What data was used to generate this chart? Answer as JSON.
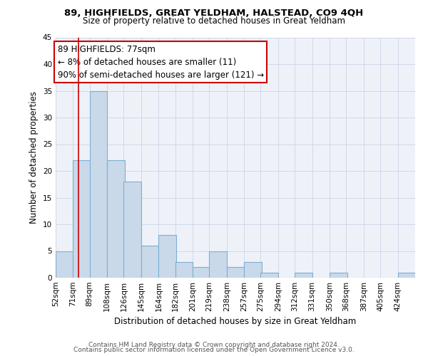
{
  "title": "89, HIGHFIELDS, GREAT YELDHAM, HALSTEAD, CO9 4QH",
  "subtitle": "Size of property relative to detached houses in Great Yeldham",
  "xlabel": "Distribution of detached houses by size in Great Yeldham",
  "ylabel": "Number of detached properties",
  "bin_labels": [
    "52sqm",
    "71sqm",
    "89sqm",
    "108sqm",
    "126sqm",
    "145sqm",
    "164sqm",
    "182sqm",
    "201sqm",
    "219sqm",
    "238sqm",
    "257sqm",
    "275sqm",
    "294sqm",
    "312sqm",
    "331sqm",
    "350sqm",
    "368sqm",
    "387sqm",
    "405sqm",
    "424sqm"
  ],
  "bin_left_edges": [
    52,
    71,
    89,
    108,
    126,
    145,
    164,
    182,
    201,
    219,
    238,
    257,
    275,
    294,
    312,
    331,
    350,
    368,
    387,
    405,
    424
  ],
  "bin_width": 19,
  "values": [
    5,
    22,
    35,
    22,
    18,
    6,
    8,
    3,
    2,
    5,
    2,
    3,
    1,
    0,
    1,
    0,
    1,
    0,
    0,
    0,
    1
  ],
  "bar_color": "#c9d9ea",
  "bar_edge_color": "#7bafd4",
  "bar_edge_width": 0.8,
  "ref_line_x": 77,
  "ref_line_color": "#cc0000",
  "annotation_line1": "89 HIGHFIELDS: 77sqm",
  "annotation_line2": "← 8% of detached houses are smaller (11)",
  "annotation_line3": "90% of semi-detached houses are larger (121) →",
  "annotation_box_color": "#ffffff",
  "annotation_box_edge": "#cc0000",
  "annotation_fontsize": 8.5,
  "ylim": [
    0,
    45
  ],
  "yticks": [
    0,
    5,
    10,
    15,
    20,
    25,
    30,
    35,
    40,
    45
  ],
  "grid_color": "#d0d8e8",
  "background_color": "#eef2f8",
  "footer_line1": "Contains HM Land Registry data © Crown copyright and database right 2024.",
  "footer_line2": "Contains public sector information licensed under the Open Government Licence v3.0.",
  "title_fontsize": 9.5,
  "subtitle_fontsize": 8.5,
  "axis_label_fontsize": 8.5,
  "tick_fontsize": 7.5,
  "footer_fontsize": 6.5
}
